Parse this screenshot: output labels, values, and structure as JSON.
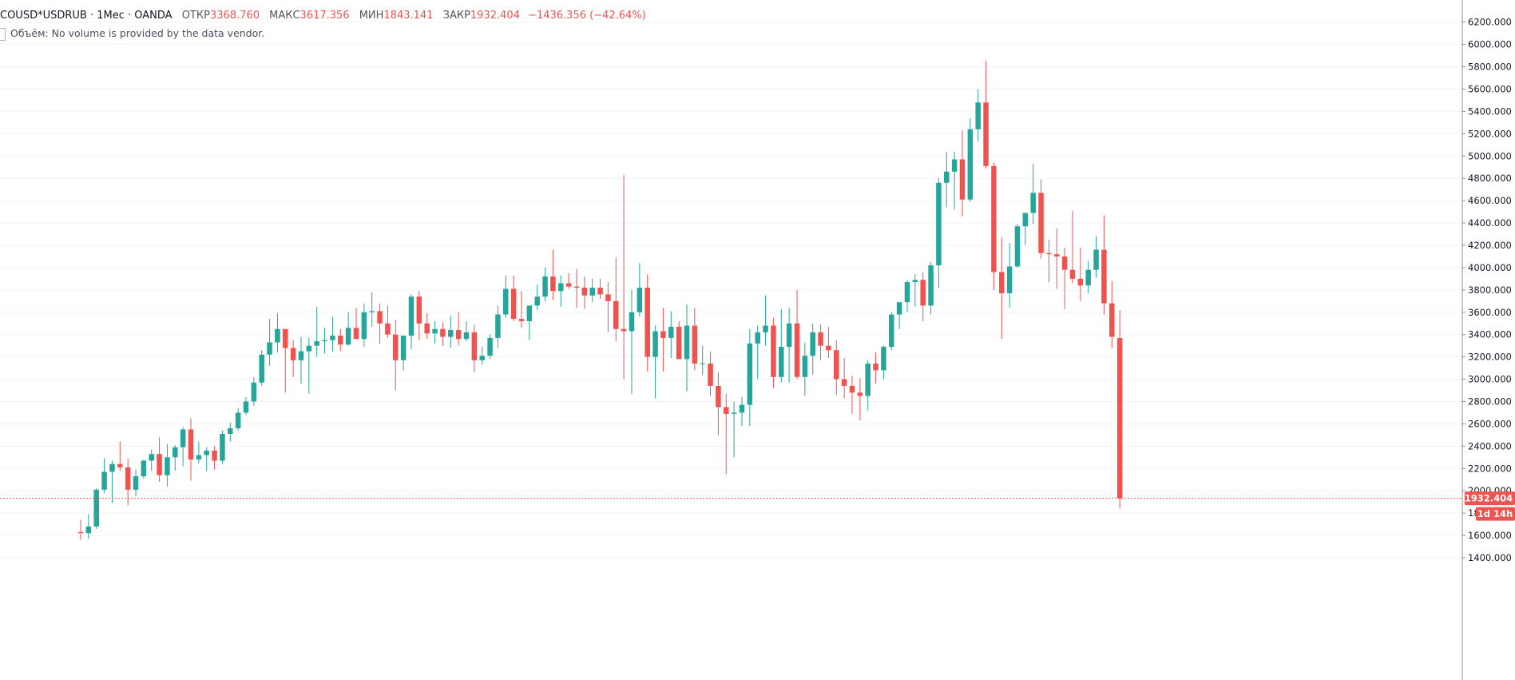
{
  "legend": {
    "symbol": "COUSD*USDRUB · 1Мес · OANDA",
    "open_label": "ОТКР",
    "open": "3368.760",
    "high_label": "МАКС",
    "high": "3617.356",
    "low_label": "МИН",
    "low": "1843.141",
    "close_label": "ЗАКР",
    "close": "1932.404",
    "change": "−1436.356 (−42.64%)"
  },
  "volume_note": "Объём: No volume is provided by the data vendor.",
  "last_price_label": "1932.404",
  "countdown_label": "1d 14h",
  "colors": {
    "up": "#26a69a",
    "down": "#ef5350",
    "grid": "#f0f3fa",
    "axis_line": "#8a8f9a"
  },
  "chart_data": {
    "type": "candlestick",
    "ylim": [
      1300,
      6300
    ],
    "y_ticks": [
      "1400.000",
      "1600.000",
      "1800.000",
      "2000.000",
      "2200.000",
      "2400.000",
      "2600.000",
      "2800.000",
      "3000.000",
      "3200.000",
      "3400.000",
      "3600.000",
      "3800.000",
      "4000.000",
      "4200.000",
      "4400.000",
      "4600.000",
      "4800.000",
      "5000.000",
      "5200.000",
      "5400.000",
      "5600.000",
      "5800.000",
      "6000.000",
      "6200.000"
    ],
    "last_close": 1932.404,
    "candles": [
      [
        1630,
        1740,
        1560,
        1620
      ],
      [
        1620,
        1790,
        1570,
        1680
      ],
      [
        1680,
        2020,
        1660,
        2010
      ],
      [
        2010,
        2290,
        1980,
        2170
      ],
      [
        2170,
        2270,
        1890,
        2240
      ],
      [
        2240,
        2440,
        2180,
        2210
      ],
      [
        2210,
        2290,
        1870,
        2010
      ],
      [
        2010,
        2190,
        1950,
        2130
      ],
      [
        2130,
        2280,
        2110,
        2270
      ],
      [
        2270,
        2370,
        2180,
        2330
      ],
      [
        2330,
        2480,
        2080,
        2140
      ],
      [
        2140,
        2420,
        2040,
        2300
      ],
      [
        2300,
        2410,
        2180,
        2390
      ],
      [
        2390,
        2570,
        2220,
        2550
      ],
      [
        2550,
        2650,
        2090,
        2280
      ],
      [
        2280,
        2440,
        2250,
        2320
      ],
      [
        2320,
        2390,
        2180,
        2360
      ],
      [
        2360,
        2400,
        2190,
        2270
      ],
      [
        2270,
        2540,
        2240,
        2510
      ],
      [
        2510,
        2610,
        2440,
        2560
      ],
      [
        2560,
        2740,
        2540,
        2700
      ],
      [
        2700,
        2840,
        2680,
        2800
      ],
      [
        2800,
        3020,
        2760,
        2970
      ],
      [
        2970,
        3260,
        2940,
        3220
      ],
      [
        3220,
        3540,
        3120,
        3330
      ],
      [
        3330,
        3590,
        3240,
        3450
      ],
      [
        3450,
        3420,
        2880,
        3280
      ],
      [
        3280,
        3350,
        3020,
        3170
      ],
      [
        3170,
        3380,
        2960,
        3250
      ],
      [
        3250,
        3370,
        2870,
        3300
      ],
      [
        3300,
        3650,
        3200,
        3340
      ],
      [
        3340,
        3460,
        3230,
        3350
      ],
      [
        3350,
        3560,
        3250,
        3390
      ],
      [
        3390,
        3450,
        3250,
        3310
      ],
      [
        3310,
        3600,
        3300,
        3460
      ],
      [
        3460,
        3640,
        3370,
        3360
      ],
      [
        3360,
        3680,
        3290,
        3600
      ],
      [
        3600,
        3780,
        3470,
        3610
      ],
      [
        3610,
        3680,
        3320,
        3500
      ],
      [
        3500,
        3660,
        3370,
        3400
      ],
      [
        3400,
        3530,
        2900,
        3170
      ],
      [
        3170,
        3380,
        3080,
        3390
      ],
      [
        3390,
        3760,
        3270,
        3740
      ],
      [
        3740,
        3790,
        3350,
        3500
      ],
      [
        3500,
        3590,
        3360,
        3410
      ],
      [
        3410,
        3520,
        3320,
        3450
      ],
      [
        3450,
        3510,
        3300,
        3380
      ],
      [
        3380,
        3570,
        3280,
        3440
      ],
      [
        3440,
        3600,
        3300,
        3360
      ],
      [
        3360,
        3520,
        3340,
        3420
      ],
      [
        3420,
        3490,
        3060,
        3170
      ],
      [
        3170,
        3290,
        3130,
        3210
      ],
      [
        3210,
        3400,
        3180,
        3370
      ],
      [
        3370,
        3660,
        3280,
        3580
      ],
      [
        3580,
        3930,
        3550,
        3810
      ],
      [
        3810,
        3930,
        3520,
        3540
      ],
      [
        3540,
        3790,
        3460,
        3520
      ],
      [
        3520,
        3650,
        3350,
        3660
      ],
      [
        3660,
        3850,
        3620,
        3740
      ],
      [
        3740,
        4000,
        3700,
        3920
      ],
      [
        3920,
        4160,
        3710,
        3790
      ],
      [
        3790,
        3930,
        3650,
        3860
      ],
      [
        3860,
        3950,
        3810,
        3830
      ],
      [
        3830,
        3990,
        3640,
        3820
      ],
      [
        3820,
        3920,
        3630,
        3750
      ],
      [
        3750,
        3900,
        3690,
        3820
      ],
      [
        3820,
        3900,
        3720,
        3760
      ],
      [
        3760,
        3870,
        3420,
        3700
      ],
      [
        3700,
        4090,
        3340,
        3450
      ],
      [
        3450,
        4830,
        3000,
        3430
      ],
      [
        3430,
        3800,
        2870,
        3600
      ],
      [
        3600,
        4040,
        3560,
        3820
      ],
      [
        3820,
        3940,
        3070,
        3200
      ],
      [
        3200,
        3480,
        2830,
        3430
      ],
      [
        3430,
        3640,
        3070,
        3370
      ],
      [
        3370,
        3610,
        3190,
        3470
      ],
      [
        3470,
        3520,
        3220,
        3180
      ],
      [
        3180,
        3670,
        2890,
        3480
      ],
      [
        3480,
        3640,
        3080,
        3140
      ],
      [
        3140,
        3300,
        3040,
        3140
      ],
      [
        3140,
        3250,
        2850,
        2940
      ],
      [
        2940,
        3060,
        2500,
        2750
      ],
      [
        2750,
        2870,
        2150,
        2690
      ],
      [
        2690,
        2800,
        2300,
        2700
      ],
      [
        2700,
        2840,
        2580,
        2770
      ],
      [
        2770,
        3450,
        2580,
        3320
      ],
      [
        3320,
        3480,
        3000,
        3420
      ],
      [
        3420,
        3750,
        3300,
        3480
      ],
      [
        3480,
        3550,
        2920,
        3020
      ],
      [
        3020,
        3630,
        2970,
        3290
      ],
      [
        3290,
        3640,
        2970,
        3500
      ],
      [
        3500,
        3800,
        3000,
        3020
      ],
      [
        3020,
        3330,
        2850,
        3210
      ],
      [
        3210,
        3500,
        3040,
        3420
      ],
      [
        3420,
        3490,
        3170,
        3300
      ],
      [
        3300,
        3470,
        3190,
        3260
      ],
      [
        3260,
        3350,
        2860,
        3000
      ],
      [
        3000,
        3190,
        2830,
        2940
      ],
      [
        2940,
        3030,
        2690,
        2880
      ],
      [
        2880,
        3010,
        2630,
        2850
      ],
      [
        2850,
        3170,
        2720,
        3140
      ],
      [
        3140,
        3240,
        2960,
        3080
      ],
      [
        3080,
        3300,
        3000,
        3290
      ],
      [
        3290,
        3600,
        3260,
        3580
      ],
      [
        3580,
        3680,
        3450,
        3690
      ],
      [
        3690,
        3890,
        3600,
        3870
      ],
      [
        3870,
        3940,
        3650,
        3890
      ],
      [
        3890,
        3960,
        3520,
        3660
      ],
      [
        3660,
        4050,
        3580,
        4020
      ],
      [
        4020,
        4800,
        3820,
        4760
      ],
      [
        4760,
        5040,
        4540,
        4860
      ],
      [
        4860,
        5040,
        4520,
        4970
      ],
      [
        4970,
        5230,
        4460,
        4610
      ],
      [
        4610,
        5340,
        4590,
        5240
      ],
      [
        5240,
        5600,
        5130,
        5480
      ],
      [
        5480,
        5850,
        4890,
        4910
      ],
      [
        4910,
        4940,
        3800,
        3960
      ],
      [
        3960,
        4270,
        3360,
        3770
      ],
      [
        3770,
        4220,
        3640,
        4010
      ],
      [
        4010,
        4390,
        4000,
        4370
      ],
      [
        4370,
        4490,
        4200,
        4490
      ],
      [
        4490,
        4930,
        4390,
        4670
      ],
      [
        4670,
        4790,
        4080,
        4130
      ],
      [
        4130,
        4250,
        3870,
        4120
      ],
      [
        4120,
        4350,
        3810,
        4100
      ],
      [
        4100,
        4180,
        3630,
        3980
      ],
      [
        3980,
        4510,
        3860,
        3900
      ],
      [
        3900,
        4180,
        3700,
        3840
      ],
      [
        3840,
        4060,
        3770,
        3980
      ],
      [
        3980,
        4280,
        3910,
        4160
      ],
      [
        4160,
        4470,
        3580,
        3680
      ],
      [
        3680,
        3880,
        3280,
        3380
      ],
      [
        3368.76,
        3617.356,
        1843.141,
        1932.404
      ]
    ]
  }
}
